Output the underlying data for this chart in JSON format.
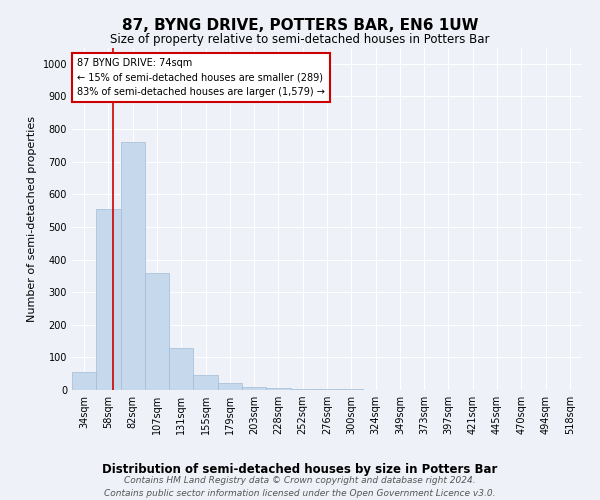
{
  "title": "87, BYNG DRIVE, POTTERS BAR, EN6 1UW",
  "subtitle": "Size of property relative to semi-detached houses in Potters Bar",
  "xlabel": "Distribution of semi-detached houses by size in Potters Bar",
  "ylabel": "Number of semi-detached properties",
  "bar_color": "#c5d8ec",
  "bar_edge_color": "#a0bcd8",
  "categories": [
    "34sqm",
    "58sqm",
    "82sqm",
    "107sqm",
    "131sqm",
    "155sqm",
    "179sqm",
    "203sqm",
    "228sqm",
    "252sqm",
    "276sqm",
    "300sqm",
    "324sqm",
    "349sqm",
    "373sqm",
    "397sqm",
    "421sqm",
    "445sqm",
    "470sqm",
    "494sqm",
    "518sqm"
  ],
  "values": [
    55,
    555,
    760,
    360,
    130,
    45,
    20,
    10,
    5,
    3,
    2,
    2,
    0,
    0,
    0,
    0,
    0,
    0,
    0,
    0,
    0
  ],
  "ylim": [
    0,
    1050
  ],
  "yticks": [
    0,
    100,
    200,
    300,
    400,
    500,
    600,
    700,
    800,
    900,
    1000
  ],
  "red_line_x": 1.67,
  "annotation_title": "87 BYNG DRIVE: 74sqm",
  "annotation_line1": "← 15% of semi-detached houses are smaller (289)",
  "annotation_line2": "83% of semi-detached houses are larger (1,579) →",
  "annotation_box_color": "#ffffff",
  "annotation_box_edge": "#cc0000",
  "footnote1": "Contains HM Land Registry data © Crown copyright and database right 2024.",
  "footnote2": "Contains public sector information licensed under the Open Government Licence v3.0.",
  "background_color": "#eef2f8",
  "grid_color": "#ffffff",
  "title_fontsize": 11,
  "subtitle_fontsize": 8.5,
  "axis_label_fontsize": 8,
  "tick_fontsize": 7,
  "footnote_fontsize": 6.5
}
